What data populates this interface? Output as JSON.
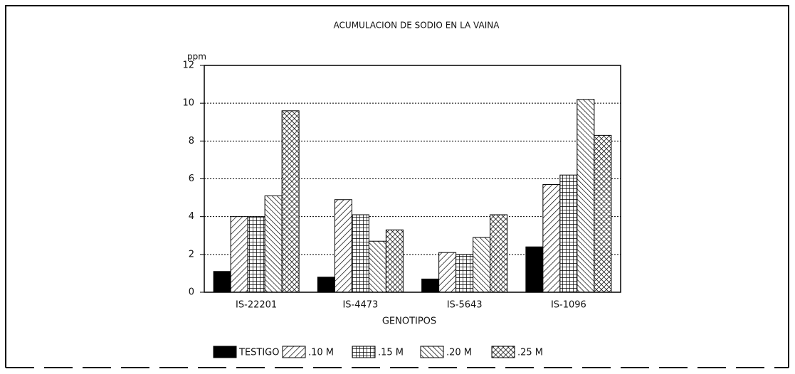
{
  "chart_data": {
    "type": "bar",
    "title": "ACUMULACION DE SODIO EN LA VAINA",
    "y_label": "ppm",
    "x_label": "GENOTIPOS",
    "categories": [
      "IS-22201",
      "IS-4473",
      "IS-5643",
      "IS-1096"
    ],
    "series": [
      {
        "name": "TESTIGO",
        "color": "#000000",
        "pattern": "solid",
        "values": [
          1.1,
          0.8,
          0.7,
          2.4
        ]
      },
      {
        "name": ".10 M",
        "color": "#000000",
        "pattern": "hatch",
        "values": [
          4.0,
          4.9,
          2.1,
          5.7
        ]
      },
      {
        "name": ".15 M",
        "color": "#000000",
        "pattern": "grid",
        "values": [
          4.0,
          4.1,
          2.0,
          6.2
        ]
      },
      {
        "name": ".20 M",
        "color": "#000000",
        "pattern": "backhatch",
        "values": [
          5.1,
          2.7,
          2.9,
          10.2
        ]
      },
      {
        "name": ".25 M",
        "color": "#000000",
        "pattern": "crosshatch",
        "values": [
          9.6,
          3.3,
          4.1,
          8.3
        ]
      }
    ],
    "ylim": [
      0,
      12
    ],
    "yticks": [
      0,
      2,
      4,
      6,
      8,
      10,
      12
    ],
    "grid": true,
    "legend": "bottom"
  }
}
